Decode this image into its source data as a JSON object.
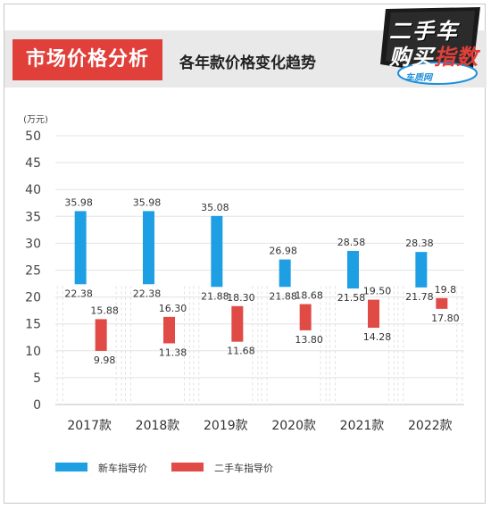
{
  "header": {
    "title": "市场价格分析",
    "subtitle": "各年款价格变化趋势",
    "logo_line1": "二手车",
    "logo_line2_a": "购买",
    "logo_line2_b": "指数",
    "logo_site": "车质网"
  },
  "chart_data": {
    "type": "bar",
    "ylabel": "(万元)",
    "ylim": [
      0,
      50
    ],
    "yticks": [
      0,
      5,
      10,
      15,
      20,
      25,
      30,
      35,
      40,
      45,
      50
    ],
    "categories": [
      "2017款",
      "2018款",
      "2019款",
      "2020款",
      "2021款",
      "2022款"
    ],
    "series": [
      {
        "name": "新车指导价",
        "color": "#1e9fe4",
        "low": [
          22.38,
          22.38,
          21.88,
          21.88,
          21.58,
          21.78
        ],
        "high": [
          35.98,
          35.98,
          35.08,
          26.98,
          28.58,
          28.38
        ],
        "low_labels": [
          "22.38",
          "22.38",
          "21.88",
          "21.88",
          "21.58",
          "21.78"
        ],
        "high_labels": [
          "35.98",
          "35.98",
          "35.08",
          "26.98",
          "28.58",
          "28.38"
        ]
      },
      {
        "name": "二手车指导价",
        "color": "#e04b46",
        "low": [
          9.98,
          11.38,
          11.68,
          13.8,
          14.28,
          17.8
        ],
        "high": [
          15.88,
          16.3,
          18.3,
          18.68,
          19.5,
          19.8
        ],
        "low_labels": [
          "9.98",
          "11.38",
          "11.68",
          "13.80",
          "14.28",
          "17.80"
        ],
        "high_labels": [
          "15.88",
          "16.30",
          "18.30",
          "18.68",
          "19.50",
          "19.8"
        ]
      }
    ],
    "grid": true,
    "legend": "bottom-left"
  }
}
